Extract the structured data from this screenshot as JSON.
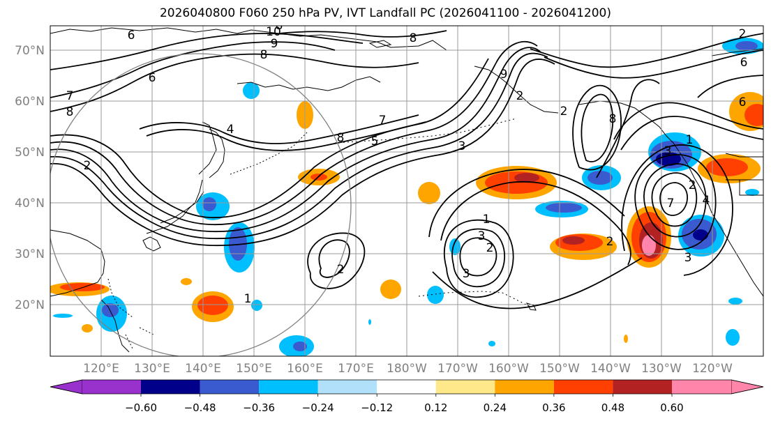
{
  "title": "2026040800 F060 250 hPa PV, IVT Landfall PC (2026041100 - 2026041200)",
  "map": {
    "lat_labels": [
      "70°N",
      "60°N",
      "50°N",
      "40°N",
      "30°N",
      "20°N"
    ],
    "lon_labels": [
      "120°E",
      "130°E",
      "140°E",
      "150°E",
      "160°E",
      "170°E",
      "180°W",
      "170°W",
      "160°W",
      "150°W",
      "140°W",
      "130°W",
      "120°W"
    ],
    "contour_labels": [
      "6",
      "10",
      "9",
      "8",
      "7",
      "8",
      "6",
      "4",
      "8",
      "7",
      "5",
      "3",
      "2",
      "8",
      "2",
      "3",
      "2",
      "3",
      "2",
      "1",
      "7",
      "1",
      "3",
      "2",
      "6",
      "8",
      "1",
      "2",
      "9",
      "6",
      "4",
      "3",
      "2",
      "2",
      "8"
    ]
  },
  "colorbar": {
    "ticks": [
      "−0.60",
      "−0.48",
      "−0.36",
      "−0.24",
      "−0.12",
      "0.12",
      "0.24",
      "0.36",
      "0.48",
      "0.60"
    ],
    "colors": [
      "#9932cc",
      "#00008b",
      "#3a5bd0",
      "#00bfff",
      "#b0e0fa",
      "#ffffff",
      "#ffe88a",
      "#ffa500",
      "#ff4000",
      "#b22222",
      "#ff85aa"
    ]
  },
  "legend_colors": {
    "contour": "#000000",
    "circle": "#808080",
    "grid": "#9a9a9a",
    "tick_label": "#808080"
  }
}
